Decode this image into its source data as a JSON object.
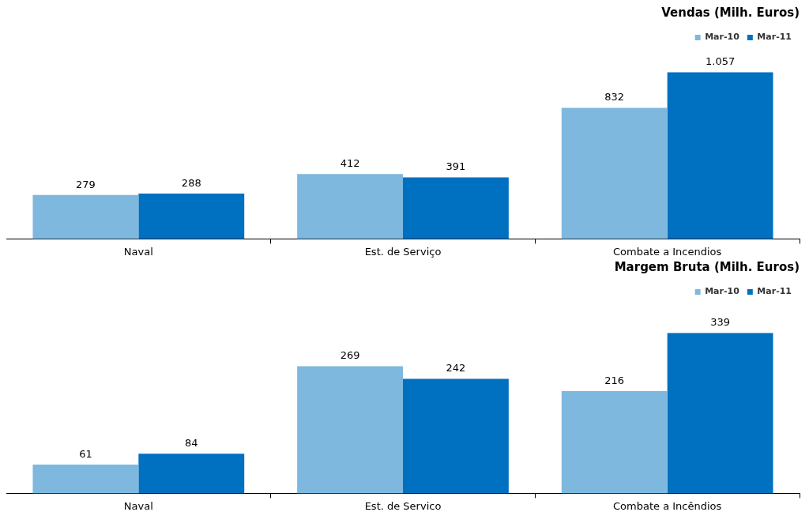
{
  "chart_data": [
    {
      "type": "bar",
      "title": "Vendas (Milh. Euros)",
      "categories": [
        "Naval",
        "Est. de Serviço",
        "Combate a Incendios"
      ],
      "series": [
        {
          "name": "Mar-10",
          "color": "#7fb8de",
          "values": [
            279,
            412,
            832
          ],
          "value_labels": [
            "279",
            "412",
            "832"
          ]
        },
        {
          "name": "Mar-11",
          "color": "#0070c0",
          "values": [
            288,
            391,
            1057
          ],
          "value_labels": [
            "288",
            "391",
            "1.057"
          ]
        }
      ],
      "legend": "top right",
      "grid": false
    },
    {
      "type": "bar",
      "title": "Margem Bruta (Milh. Euros)",
      "categories": [
        "Naval",
        "Est. de Servico",
        "Combate a Incêndios"
      ],
      "series": [
        {
          "name": "Mar-10",
          "color": "#7fb8de",
          "values": [
            61,
            269,
            216
          ],
          "value_labels": [
            "61",
            "269",
            "216"
          ]
        },
        {
          "name": "Mar-11",
          "color": "#0070c0",
          "values": [
            84,
            242,
            339
          ],
          "value_labels": [
            "84",
            "242",
            "339"
          ]
        }
      ],
      "legend": "top right",
      "grid": false
    }
  ]
}
